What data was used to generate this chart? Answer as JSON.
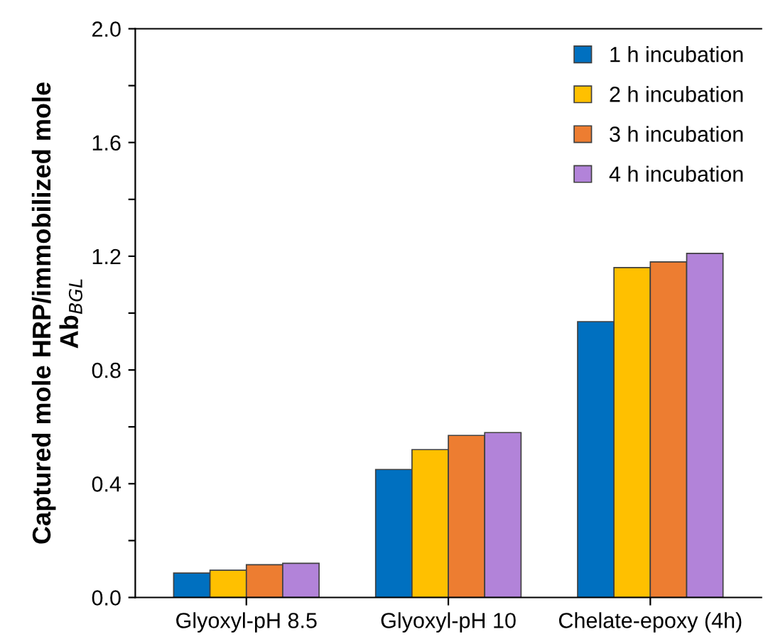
{
  "chart_data": {
    "type": "bar",
    "ylabel": "Captured mole HRP/immobilized mole\nAb$_{BGL}$",
    "categories": [
      "Glyoxyl-pH 8.5",
      "Glyoxyl-pH 10",
      "Chelate-epoxy (4h)"
    ],
    "series": [
      {
        "name": "1 h incubation",
        "color": "#0070c0",
        "values": [
          0.086,
          0.45,
          0.97
        ]
      },
      {
        "name": "2 h incubation",
        "color": "#ffc000",
        "values": [
          0.096,
          0.52,
          1.16
        ]
      },
      {
        "name": "3 h incubation",
        "color": "#ed7d31",
        "values": [
          0.115,
          0.57,
          1.18
        ]
      },
      {
        "name": "4 h incubation",
        "color": "#b283d9",
        "values": [
          0.12,
          0.58,
          1.21
        ]
      }
    ],
    "ylim": [
      0,
      2.0
    ],
    "yticks": [
      {
        "value": 0,
        "label": "0.0"
      },
      {
        "value": 0.2,
        "label": null
      },
      {
        "value": 0.4,
        "label": "0.4"
      },
      {
        "value": 0.6,
        "label": null
      },
      {
        "value": 0.8,
        "label": "0.8"
      },
      {
        "value": 1.0,
        "label": null
      },
      {
        "value": 1.2,
        "label": "1.2"
      },
      {
        "value": 1.4,
        "label": null
      },
      {
        "value": 1.6,
        "label": "1.6"
      },
      {
        "value": 1.8,
        "label": null
      },
      {
        "value": 2.0,
        "label": "2.0"
      }
    ],
    "grid": false,
    "legend": "top right"
  }
}
